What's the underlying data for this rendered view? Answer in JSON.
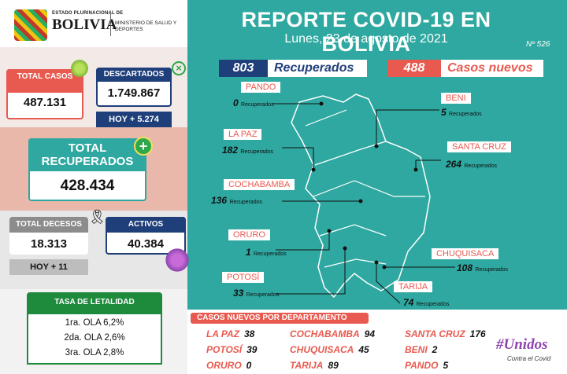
{
  "header": {
    "estado": "ESTADO PLURINACIONAL DE",
    "bolivia": "BOLIVIA",
    "ministerio": "MINISTERIO DE SALUD Y DEPORTES"
  },
  "title": "REPORTE COVID-19 EN BOLIVIA",
  "subtitle": "Lunes, 23 de agosto de 2021",
  "report_no": "Nº 526",
  "stats": {
    "total_casos_label": "TOTAL CASOS",
    "total_casos": "487.131",
    "descartados_label": "DESCARTADOS",
    "descartados": "1.749.867",
    "hoy_descartados": "HOY +  5.274",
    "total_recuperados_label": "TOTAL RECUPERADOS",
    "total_recuperados": "428.434",
    "total_decesos_label": "TOTAL DECESOS",
    "total_decesos": "18.313",
    "hoy_decesos": "HOY + 11",
    "activos_label": "ACTIVOS",
    "activos": "40.384"
  },
  "tasa": {
    "label": "TASA DE LETALIDAD",
    "lines": [
      "1ra. OLA 6,2%",
      "2da. OLA 2,6%",
      "3ra. OLA 2,8%"
    ]
  },
  "pills": {
    "recuperados_num": "803",
    "recuperados_label": "Recuperados",
    "casos_num": "488",
    "casos_label": "Casos nuevos"
  },
  "departments": [
    {
      "name": "PANDO",
      "value": "0",
      "unit": "Recuperados"
    },
    {
      "name": "BENI",
      "value": "5",
      "unit": "Recuperados"
    },
    {
      "name": "LA PAZ",
      "value": "182",
      "unit": "Recuperados"
    },
    {
      "name": "SANTA CRUZ",
      "value": "264",
      "unit": "Recuperados"
    },
    {
      "name": "COCHABAMBA",
      "value": "136",
      "unit": "Recuperados"
    },
    {
      "name": "ORURO",
      "value": "1",
      "unit": "Recuperados"
    },
    {
      "name": "CHUQUISACA",
      "value": "108",
      "unit": "Recuperados"
    },
    {
      "name": "POTOSÍ",
      "value": "33",
      "unit": "Recuperados"
    },
    {
      "name": "TARIJA",
      "value": "74",
      "unit": "Recuperados"
    }
  ],
  "casos_nuevos": {
    "title": "CASOS NUEVOS POR DEPARTAMENTO",
    "rows": [
      [
        {
          "name": "LA PAZ",
          "value": "38"
        },
        {
          "name": "COCHABAMBA",
          "value": "94"
        },
        {
          "name": "SANTA CRUZ",
          "value": "176"
        }
      ],
      [
        {
          "name": "POTOSÍ",
          "value": "39"
        },
        {
          "name": "CHUQUISACA",
          "value": "45"
        },
        {
          "name": "BENI",
          "value": "2"
        }
      ],
      [
        {
          "name": "ORURO",
          "value": "0"
        },
        {
          "name": "TARIJA",
          "value": "89"
        },
        {
          "name": "PANDO",
          "value": "5"
        }
      ]
    ]
  },
  "slogan": {
    "line1": "#Unidos",
    "line2": "Contra el Covid"
  },
  "colors": {
    "teal": "#2ea8a0",
    "red": "#e85a4f",
    "navy": "#1f3f7a",
    "green": "#1e8a3c"
  }
}
